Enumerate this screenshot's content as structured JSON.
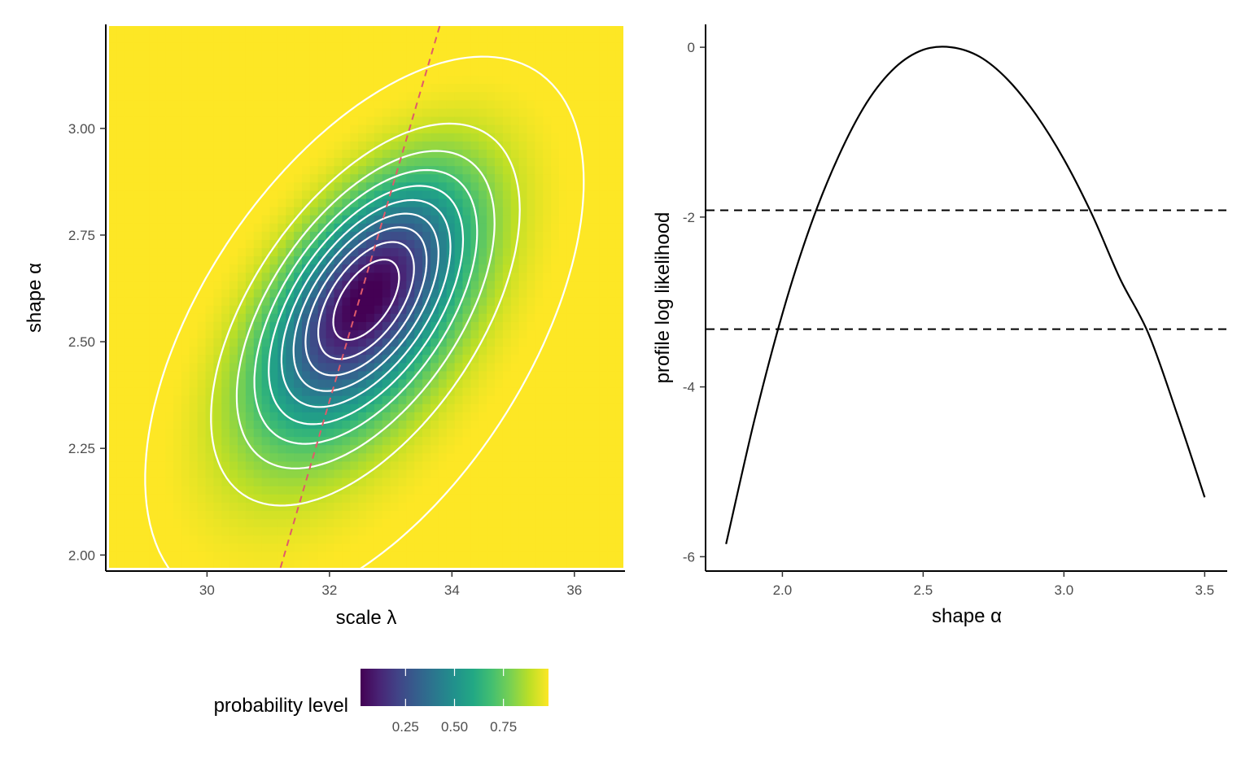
{
  "chart_data": [
    {
      "type": "heatmap",
      "xlabel": "scale λ",
      "ylabel": "shape α",
      "xlim": [
        28.4,
        36.8
      ],
      "ylim": [
        1.97,
        3.24
      ],
      "x_ticks": [
        30,
        32,
        34,
        36
      ],
      "x_tick_labels": [
        "30",
        "32",
        "34",
        "36"
      ],
      "y_ticks": [
        2.0,
        2.25,
        2.5,
        2.75,
        3.0
      ],
      "y_tick_labels": [
        "2.00",
        "2.25",
        "2.50",
        "2.75",
        "3.00"
      ],
      "mle": {
        "scale": 32.6,
        "shape": 2.6
      },
      "fill": "probability level",
      "contour_levels": [
        0.1,
        0.2,
        0.3,
        0.4,
        0.5,
        0.6,
        0.7,
        0.8,
        0.9,
        0.99
      ],
      "contour_color": "#ffffff",
      "profile_path_color": "#e05a6a",
      "profile_path": {
        "x": [
          31.2,
          33.8
        ],
        "y": [
          1.97,
          3.24
        ]
      },
      "grid": false,
      "legend": {
        "title": "probability level",
        "position": "bottom",
        "ticks": [
          0.25,
          0.5,
          0.75
        ],
        "tick_labels": [
          "0.25",
          "0.50",
          "0.75"
        ],
        "range": [
          0.02,
          0.98
        ],
        "palette": [
          "#440154",
          "#482475",
          "#414487",
          "#355f8d",
          "#2a788e",
          "#21918c",
          "#22a884",
          "#44bf70",
          "#7ad151",
          "#bddf26",
          "#fde725"
        ]
      }
    },
    {
      "type": "line",
      "xlabel": "shape α",
      "ylabel": "profile log likelihood",
      "xlim": [
        1.73,
        3.58
      ],
      "ylim": [
        -6.15,
        0.25
      ],
      "x_ticks": [
        2.0,
        2.5,
        3.0,
        3.5
      ],
      "x_tick_labels": [
        "2.0",
        "2.5",
        "3.0",
        "3.5"
      ],
      "y_ticks": [
        -6,
        -4,
        -2,
        0
      ],
      "y_tick_labels": [
        "-6",
        "-4",
        "-2",
        "0"
      ],
      "series": [
        {
          "x": [
            1.8,
            1.9,
            2.0,
            2.1,
            2.2,
            2.3,
            2.4,
            2.5,
            2.6,
            2.7,
            2.8,
            2.9,
            3.0,
            3.1,
            3.2,
            3.3,
            3.4,
            3.5
          ],
          "y": [
            -5.85,
            -4.4,
            -3.14,
            -2.1,
            -1.28,
            -0.65,
            -0.24,
            -0.03,
            0.0,
            -0.11,
            -0.38,
            -0.79,
            -1.32,
            -1.97,
            -2.73,
            -3.37,
            -4.3,
            -5.3
          ],
          "color": "#000000"
        }
      ],
      "hlines": [
        {
          "y": -1.92,
          "style": "dashed",
          "color": "#000000"
        },
        {
          "y": -3.32,
          "style": "dashed",
          "color": "#000000"
        }
      ],
      "grid": false
    }
  ]
}
